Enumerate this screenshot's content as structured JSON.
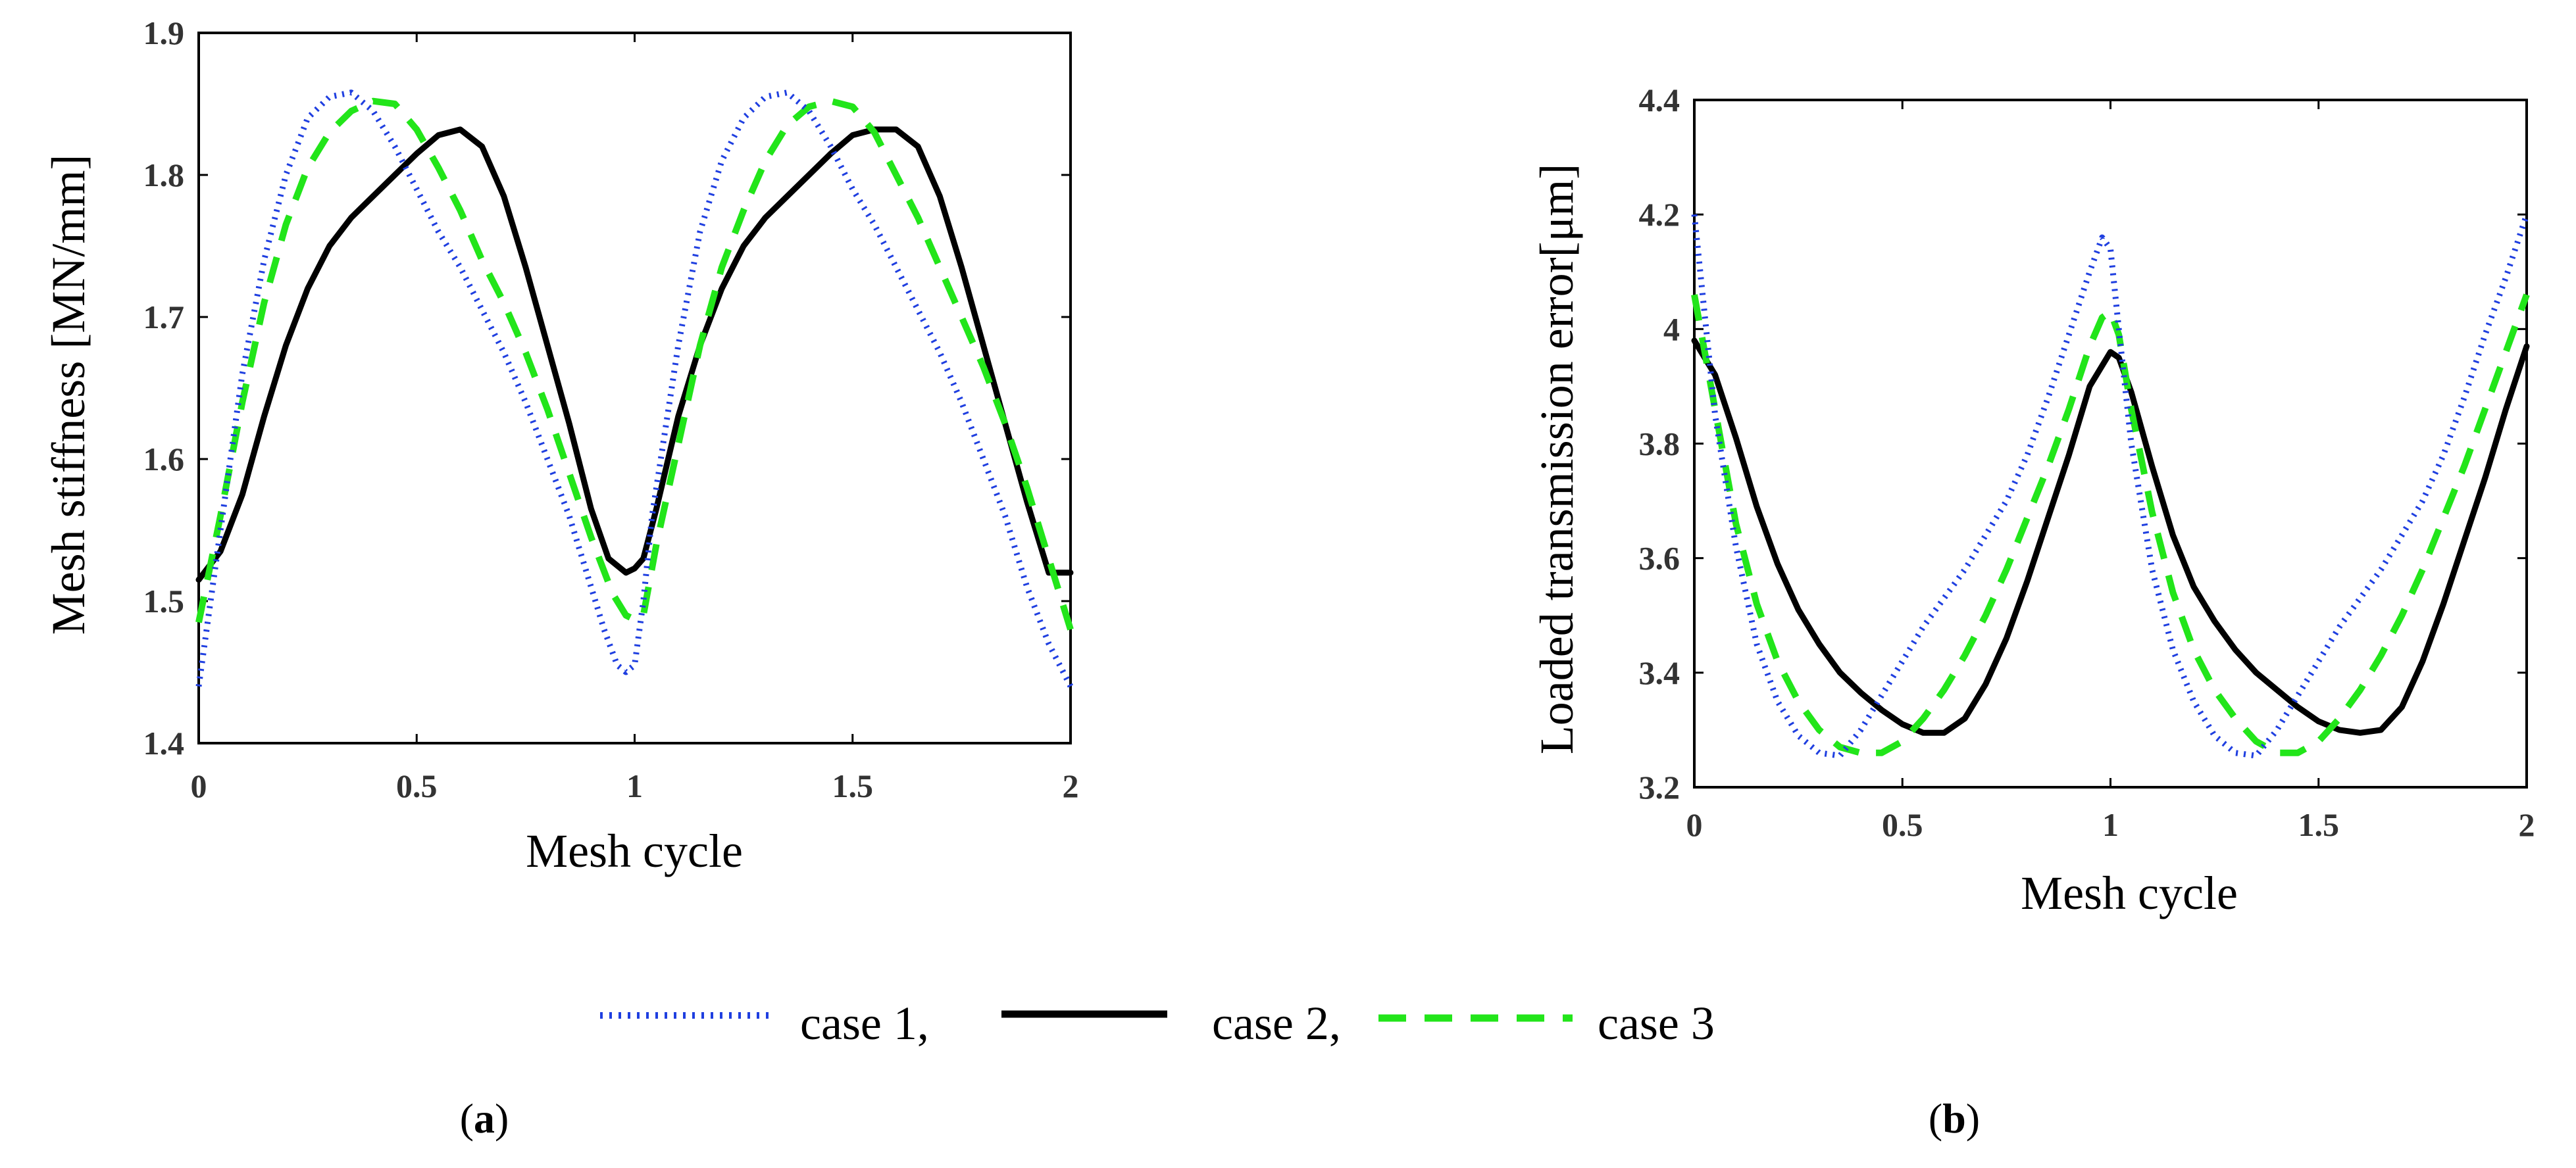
{
  "chart_data": [
    {
      "type": "line",
      "panel": "a",
      "title": "",
      "xlabel": "Mesh cycle",
      "ylabel": "Mesh stiffness [MN/mm]",
      "xlim": [
        0,
        2
      ],
      "ylim": [
        1.4,
        1.9
      ],
      "xticks": [
        0,
        0.5,
        1,
        1.5,
        2
      ],
      "xtick_labels": [
        "0",
        "0.5",
        "1",
        "1.5",
        "2"
      ],
      "yticks": [
        1.4,
        1.5,
        1.6,
        1.7,
        1.8,
        1.9
      ],
      "ytick_labels": [
        "1.4",
        "1.5",
        "1.6",
        "1.7",
        "1.8",
        "1.9"
      ],
      "grid": false,
      "series": [
        {
          "name": "case 1",
          "style": "dotted",
          "color": "#1f3fe0",
          "x": [
            0,
            0.05,
            0.1,
            0.15,
            0.2,
            0.25,
            0.3,
            0.35,
            0.4,
            0.45,
            0.5,
            0.55,
            0.6,
            0.65,
            0.7,
            0.75,
            0.8,
            0.85,
            0.9,
            0.93,
            0.96,
            0.98,
            1,
            1.02,
            1.04,
            1.07,
            1.1,
            1.15,
            1.2,
            1.25,
            1.3,
            1.35,
            1.4,
            1.45,
            1.5,
            1.55,
            1.6,
            1.65,
            1.7,
            1.75,
            1.8,
            1.85,
            1.9,
            1.95,
            2
          ],
          "y": [
            1.44,
            1.55,
            1.66,
            1.74,
            1.8,
            1.84,
            1.855,
            1.858,
            1.845,
            1.82,
            1.79,
            1.76,
            1.735,
            1.705,
            1.675,
            1.64,
            1.6,
            1.56,
            1.51,
            1.48,
            1.455,
            1.45,
            1.455,
            1.5,
            1.56,
            1.62,
            1.68,
            1.76,
            1.81,
            1.84,
            1.855,
            1.858,
            1.845,
            1.82,
            1.79,
            1.765,
            1.735,
            1.705,
            1.675,
            1.64,
            1.6,
            1.56,
            1.51,
            1.47,
            1.44
          ]
        },
        {
          "name": "case 2",
          "style": "solid",
          "color": "#000000",
          "x": [
            0,
            0.05,
            0.1,
            0.15,
            0.2,
            0.25,
            0.3,
            0.35,
            0.4,
            0.45,
            0.5,
            0.55,
            0.6,
            0.65,
            0.7,
            0.75,
            0.8,
            0.85,
            0.9,
            0.94,
            0.98,
            1,
            1.02,
            1.05,
            1.1,
            1.15,
            1.2,
            1.25,
            1.3,
            1.35,
            1.4,
            1.45,
            1.5,
            1.55,
            1.6,
            1.65,
            1.7,
            1.75,
            1.8,
            1.85,
            1.9,
            1.95,
            2
          ],
          "y": [
            1.515,
            1.535,
            1.575,
            1.63,
            1.68,
            1.72,
            1.75,
            1.77,
            1.785,
            1.8,
            1.815,
            1.828,
            1.832,
            1.82,
            1.785,
            1.735,
            1.68,
            1.625,
            1.565,
            1.53,
            1.52,
            1.523,
            1.53,
            1.565,
            1.63,
            1.68,
            1.72,
            1.75,
            1.77,
            1.785,
            1.8,
            1.815,
            1.828,
            1.832,
            1.832,
            1.82,
            1.785,
            1.735,
            1.68,
            1.625,
            1.57,
            1.52,
            1.52
          ]
        },
        {
          "name": "case 3",
          "style": "dashed",
          "color": "#22e51a",
          "x": [
            0,
            0.05,
            0.1,
            0.15,
            0.2,
            0.25,
            0.3,
            0.35,
            0.4,
            0.45,
            0.5,
            0.55,
            0.6,
            0.65,
            0.7,
            0.75,
            0.8,
            0.85,
            0.9,
            0.95,
            0.98,
            1,
            1.02,
            1.05,
            1.1,
            1.15,
            1.2,
            1.25,
            1.3,
            1.35,
            1.4,
            1.45,
            1.5,
            1.55,
            1.6,
            1.65,
            1.7,
            1.75,
            1.8,
            1.85,
            1.9,
            1.95,
            2
          ],
          "y": [
            1.485,
            1.56,
            1.64,
            1.71,
            1.765,
            1.805,
            1.83,
            1.845,
            1.852,
            1.85,
            1.832,
            1.805,
            1.775,
            1.74,
            1.71,
            1.675,
            1.635,
            1.59,
            1.545,
            1.505,
            1.49,
            1.487,
            1.49,
            1.54,
            1.61,
            1.68,
            1.735,
            1.775,
            1.81,
            1.835,
            1.848,
            1.852,
            1.848,
            1.83,
            1.8,
            1.77,
            1.735,
            1.7,
            1.665,
            1.625,
            1.58,
            1.53,
            1.48
          ]
        }
      ]
    },
    {
      "type": "line",
      "panel": "b",
      "title": "",
      "xlabel": "Mesh cycle",
      "ylabel": "Loaded transmission error[μm]",
      "xlim": [
        0,
        2
      ],
      "ylim": [
        3.2,
        4.4
      ],
      "xticks": [
        0,
        0.5,
        1,
        1.5,
        2
      ],
      "xtick_labels": [
        "0",
        "0.5",
        "1",
        "1.5",
        "2"
      ],
      "yticks": [
        3.2,
        3.4,
        3.6,
        3.8,
        4.0,
        4.2,
        4.4
      ],
      "ytick_labels": [
        "3.2",
        "3.4",
        "3.6",
        "3.8",
        "4",
        "4.2",
        "4.4"
      ],
      "grid": false,
      "series": [
        {
          "name": "case 1",
          "style": "dotted",
          "color": "#1f3fe0",
          "x": [
            0,
            0.05,
            0.1,
            0.15,
            0.2,
            0.25,
            0.3,
            0.35,
            0.4,
            0.45,
            0.5,
            0.55,
            0.6,
            0.65,
            0.7,
            0.75,
            0.8,
            0.85,
            0.9,
            0.95,
            0.98,
            1,
            1.02,
            1.05,
            1.1,
            1.15,
            1.2,
            1.25,
            1.3,
            1.35,
            1.4,
            1.45,
            1.5,
            1.55,
            1.6,
            1.65,
            1.7,
            1.75,
            1.8,
            1.85,
            1.9,
            1.95,
            2
          ],
          "y": [
            4.2,
            3.85,
            3.62,
            3.45,
            3.35,
            3.29,
            3.26,
            3.255,
            3.3,
            3.36,
            3.42,
            3.48,
            3.53,
            3.58,
            3.64,
            3.7,
            3.78,
            3.88,
            3.99,
            4.1,
            4.16,
            4.14,
            4.0,
            3.8,
            3.58,
            3.44,
            3.35,
            3.29,
            3.26,
            3.255,
            3.3,
            3.36,
            3.42,
            3.48,
            3.53,
            3.58,
            3.64,
            3.7,
            3.78,
            3.88,
            3.99,
            4.09,
            4.2
          ]
        },
        {
          "name": "case 2",
          "style": "solid",
          "color": "#000000",
          "x": [
            0,
            0.05,
            0.1,
            0.15,
            0.2,
            0.25,
            0.3,
            0.35,
            0.4,
            0.45,
            0.5,
            0.55,
            0.6,
            0.65,
            0.7,
            0.75,
            0.8,
            0.85,
            0.9,
            0.95,
            1,
            1.02,
            1.05,
            1.1,
            1.15,
            1.2,
            1.25,
            1.3,
            1.35,
            1.4,
            1.45,
            1.5,
            1.55,
            1.6,
            1.65,
            1.7,
            1.75,
            1.8,
            1.85,
            1.9,
            1.95,
            2
          ],
          "y": [
            3.98,
            3.92,
            3.81,
            3.69,
            3.59,
            3.51,
            3.45,
            3.4,
            3.365,
            3.335,
            3.31,
            3.295,
            3.295,
            3.32,
            3.38,
            3.46,
            3.56,
            3.67,
            3.78,
            3.9,
            3.96,
            3.95,
            3.89,
            3.76,
            3.64,
            3.55,
            3.49,
            3.44,
            3.4,
            3.37,
            3.34,
            3.315,
            3.3,
            3.295,
            3.3,
            3.34,
            3.42,
            3.52,
            3.63,
            3.74,
            3.86,
            3.97
          ]
        },
        {
          "name": "case 3",
          "style": "dashed",
          "color": "#22e51a",
          "x": [
            0,
            0.05,
            0.1,
            0.15,
            0.2,
            0.25,
            0.3,
            0.35,
            0.4,
            0.45,
            0.5,
            0.55,
            0.6,
            0.65,
            0.7,
            0.75,
            0.8,
            0.85,
            0.9,
            0.95,
            0.98,
            1,
            1.02,
            1.05,
            1.1,
            1.15,
            1.2,
            1.25,
            1.3,
            1.35,
            1.4,
            1.45,
            1.5,
            1.55,
            1.6,
            1.65,
            1.7,
            1.75,
            1.8,
            1.85,
            1.9,
            1.95,
            2
          ],
          "y": [
            4.06,
            3.86,
            3.66,
            3.52,
            3.42,
            3.35,
            3.3,
            3.27,
            3.26,
            3.26,
            3.28,
            3.32,
            3.37,
            3.43,
            3.5,
            3.58,
            3.67,
            3.76,
            3.86,
            3.97,
            4.02,
            4.03,
            3.99,
            3.86,
            3.68,
            3.54,
            3.44,
            3.37,
            3.32,
            3.28,
            3.26,
            3.26,
            3.28,
            3.32,
            3.37,
            3.43,
            3.5,
            3.58,
            3.67,
            3.76,
            3.86,
            3.96,
            4.06
          ]
        }
      ]
    }
  ],
  "legend": {
    "entries": [
      {
        "label": "case 1,",
        "style": "dotted",
        "color": "#1f3fe0"
      },
      {
        "label": "case 2,",
        "style": "solid",
        "color": "#000000"
      },
      {
        "label": "case 3",
        "style": "dashed",
        "color": "#22e51a"
      }
    ]
  },
  "captions": {
    "a": {
      "open": "(",
      "letter": "a",
      "close": ")"
    },
    "b": {
      "open": "(",
      "letter": "b",
      "close": ")"
    }
  }
}
